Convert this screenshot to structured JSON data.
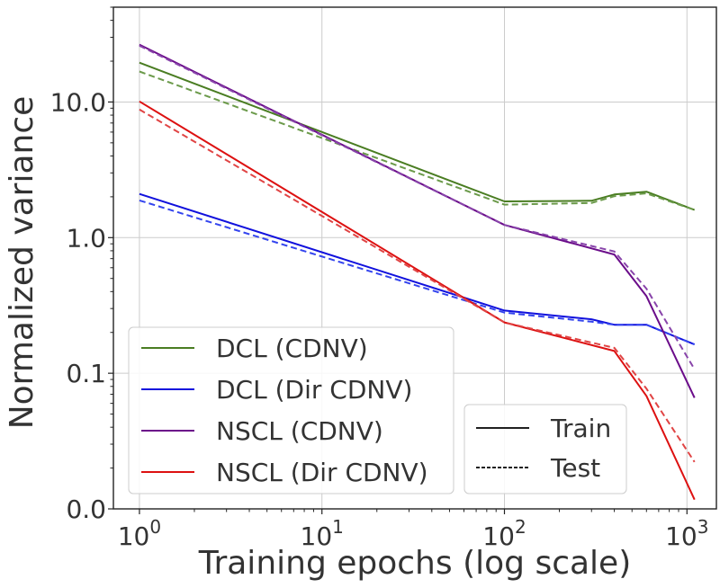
{
  "chart_data": {
    "type": "line",
    "xlabel": "Training epochs (log scale)",
    "ylabel": "Normalized variance",
    "x_scale": "log",
    "y_scale": "log",
    "xlim": [
      0.72,
      1450
    ],
    "ylim": [
      0.01,
      50
    ],
    "grid": true,
    "x_ticks": [
      {
        "value": 1,
        "base": "10",
        "exp": "0"
      },
      {
        "value": 10,
        "base": "10",
        "exp": "1"
      },
      {
        "value": 100,
        "base": "10",
        "exp": "2"
      },
      {
        "value": 1000,
        "base": "10",
        "exp": "3"
      }
    ],
    "y_ticks": [
      {
        "value": 0.01,
        "label": "0.0"
      },
      {
        "value": 0.1,
        "label": "0.1"
      },
      {
        "value": 1,
        "label": "1.0"
      },
      {
        "value": 10,
        "label": "10.0"
      }
    ],
    "series": [
      {
        "name": "DCL (CDNV)",
        "split": "Train",
        "color": "#4a7d22",
        "dashed": false,
        "x": [
          1,
          100,
          300,
          400,
          600,
          1100
        ],
        "y": [
          19.5,
          1.85,
          1.87,
          2.08,
          2.18,
          1.6
        ]
      },
      {
        "name": "DCL (CDNV)",
        "split": "Test",
        "color": "#6b9a4a",
        "dashed": true,
        "x": [
          1,
          100,
          300,
          400,
          600,
          1100
        ],
        "y": [
          16.8,
          1.75,
          1.8,
          2.02,
          2.12,
          1.6
        ]
      },
      {
        "name": "DCL (Dir CDNV)",
        "split": "Train",
        "color": "#1111dd",
        "dashed": false,
        "x": [
          1,
          100,
          300,
          400,
          600,
          1100
        ],
        "y": [
          2.1,
          0.29,
          0.25,
          0.228,
          0.228,
          0.163
        ]
      },
      {
        "name": "DCL (Dir CDNV)",
        "split": "Test",
        "color": "#3344ee",
        "dashed": true,
        "x": [
          1,
          100,
          300,
          400,
          600,
          1100
        ],
        "y": [
          1.88,
          0.28,
          0.24,
          0.228,
          0.228,
          0.163
        ]
      },
      {
        "name": "NSCL (CDNV)",
        "split": "Train",
        "color": "#6b0d8a",
        "dashed": false,
        "x": [
          1,
          100,
          400,
          600,
          1100
        ],
        "y": [
          26.5,
          1.24,
          0.75,
          0.37,
          0.066
        ]
      },
      {
        "name": "NSCL (CDNV)",
        "split": "Test",
        "color": "#8844aa",
        "dashed": true,
        "x": [
          1,
          100,
          400,
          600,
          1100
        ],
        "y": [
          26.0,
          1.24,
          0.79,
          0.42,
          0.107
        ]
      },
      {
        "name": "NSCL (Dir CDNV)",
        "split": "Train",
        "color": "#dd1111",
        "dashed": false,
        "x": [
          1,
          100,
          400,
          600,
          1100
        ],
        "y": [
          10.1,
          0.237,
          0.146,
          0.068,
          0.0117
        ]
      },
      {
        "name": "NSCL (Dir CDNV)",
        "split": "Test",
        "color": "#e04444",
        "dashed": true,
        "x": [
          1,
          100,
          400,
          600,
          1100
        ],
        "y": [
          8.8,
          0.237,
          0.154,
          0.077,
          0.0222
        ]
      }
    ],
    "legend_series": [
      {
        "label": "DCL (CDNV)",
        "color": "#4a7d22"
      },
      {
        "label": "DCL (Dir CDNV)",
        "color": "#1111dd"
      },
      {
        "label": "NSCL (CDNV)",
        "color": "#6b0d8a"
      },
      {
        "label": "NSCL (Dir CDNV)",
        "color": "#dd1111"
      }
    ],
    "legend_series_position": "lower-left",
    "legend_style": [
      {
        "label": "Train",
        "dashed": false
      },
      {
        "label": "Test",
        "dashed": true
      }
    ],
    "legend_style_position": "lower-right"
  }
}
